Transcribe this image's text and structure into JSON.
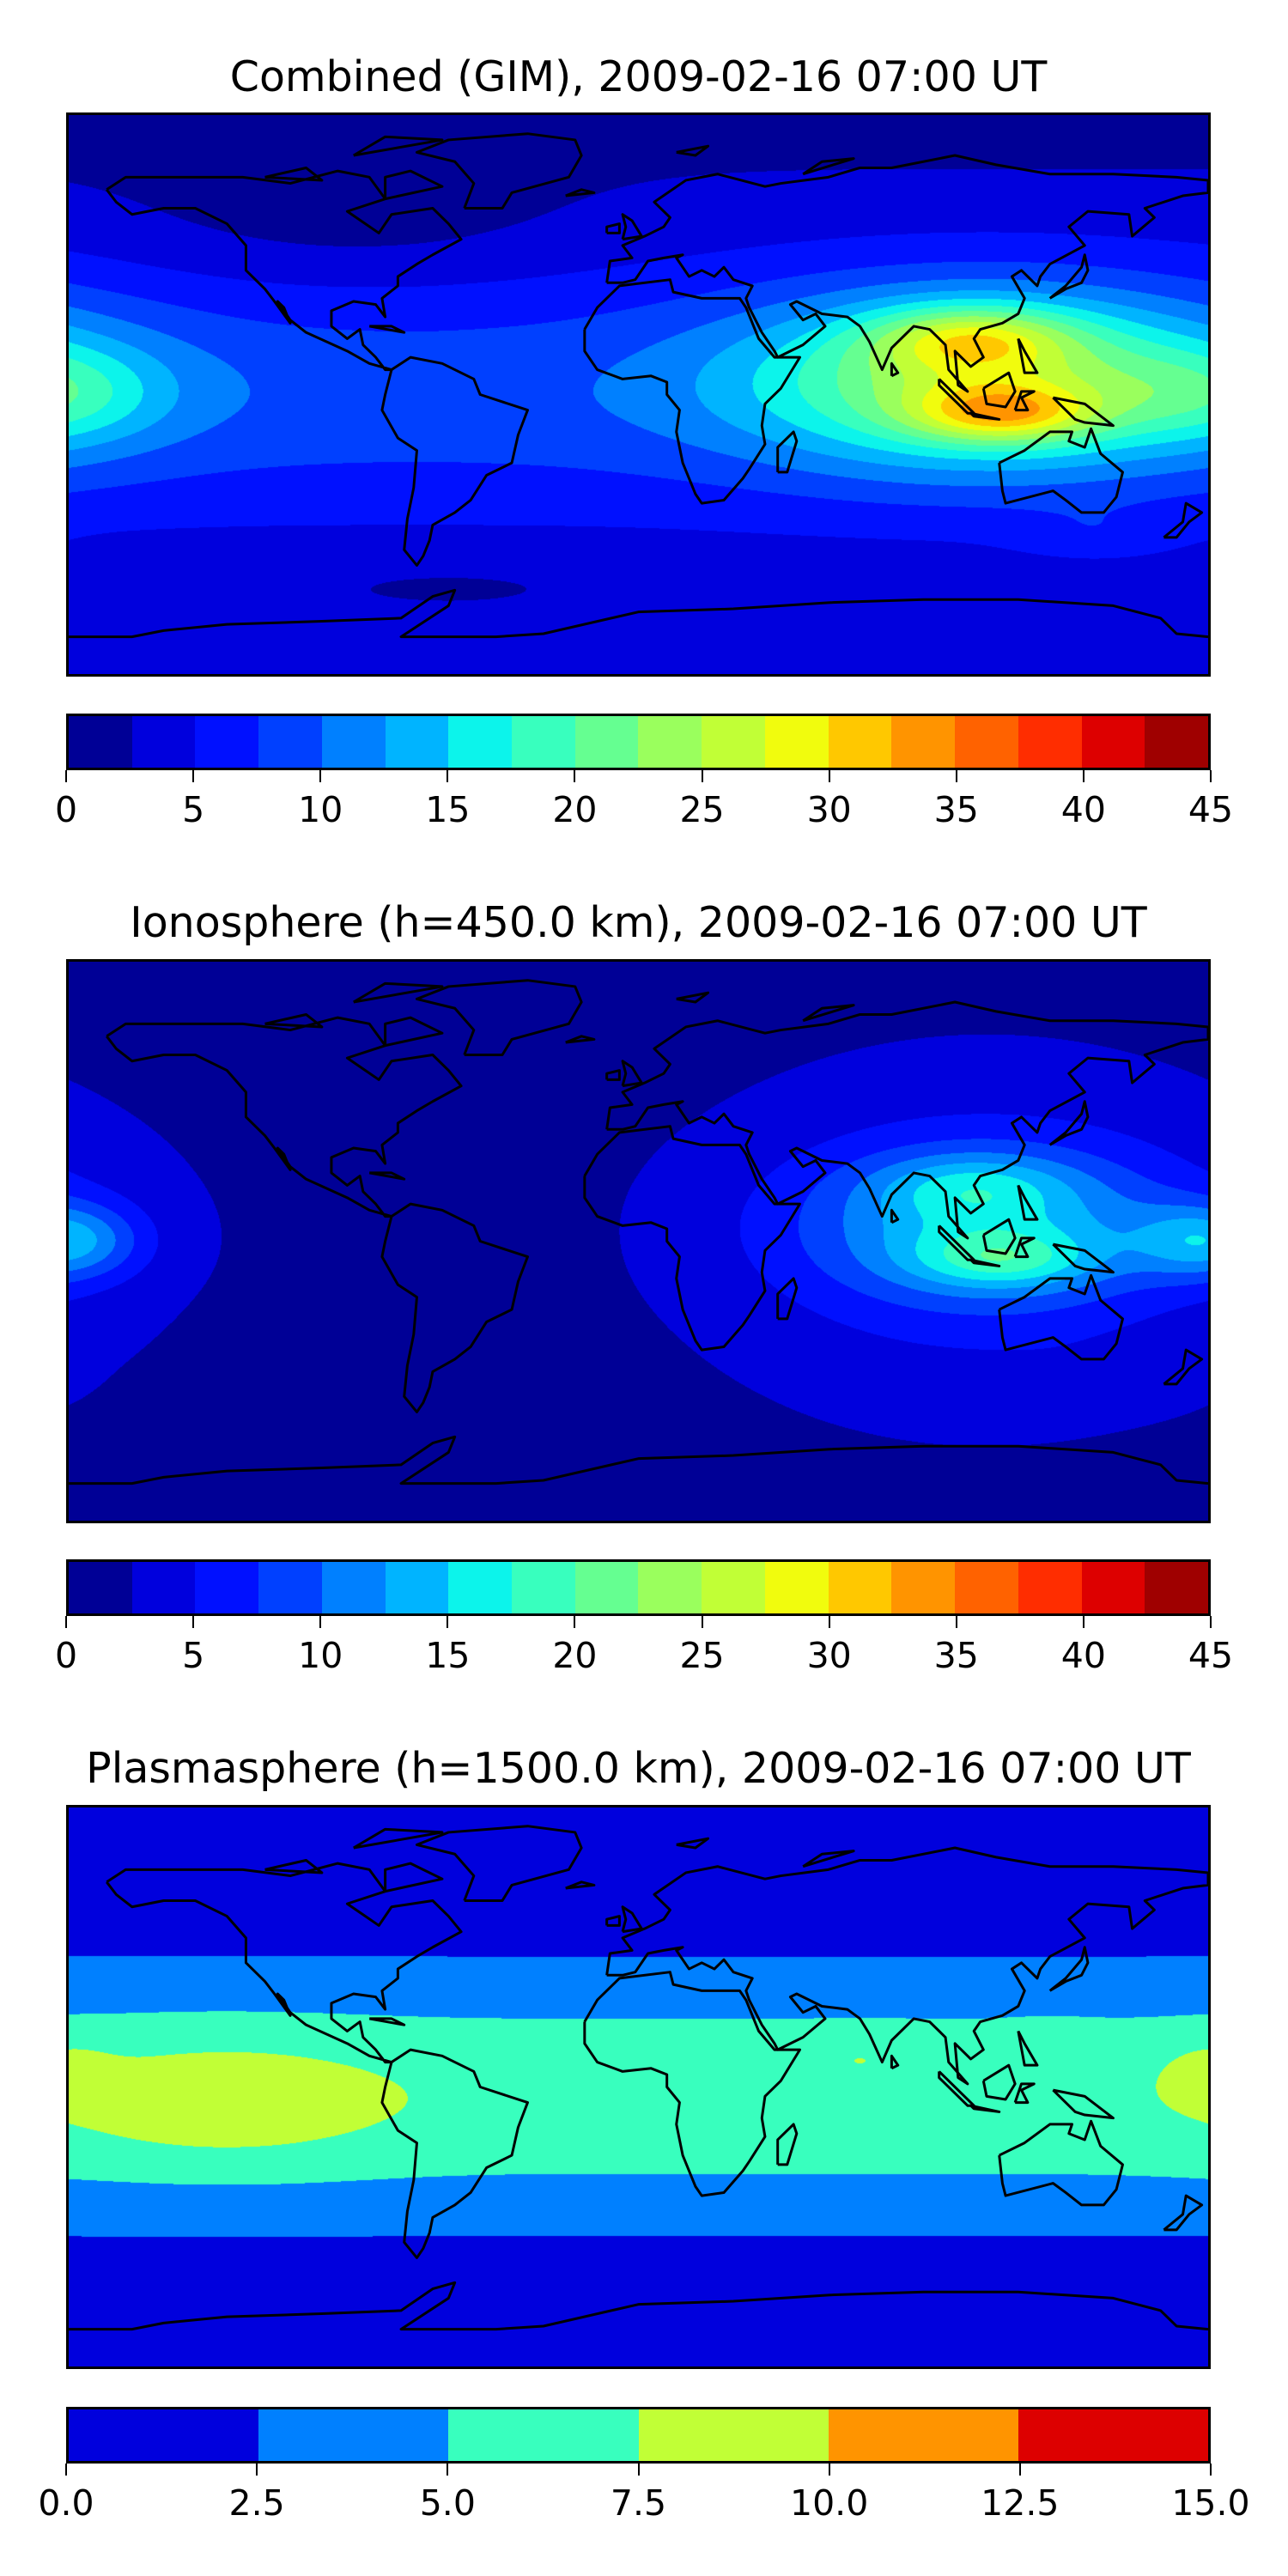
{
  "panels": [
    {
      "title": "Combined (GIM), 2009-02-16 07:00 UT",
      "field": "combined",
      "colorbar": {
        "min": 0,
        "max": 45,
        "step": 2.5,
        "colors": [
          "#000096",
          "#0000dd",
          "#0010ff",
          "#0040ff",
          "#0080ff",
          "#00b4ff",
          "#0cf4eb",
          "#38ffbe",
          "#65ff91",
          "#9aff5d",
          "#c1ff36",
          "#f1fc0d",
          "#ffc800",
          "#ff9400",
          "#ff6200",
          "#ff2d00",
          "#dd0000",
          "#9f0000"
        ],
        "ticks": [
          0,
          5,
          10,
          15,
          20,
          25,
          30,
          35,
          40,
          45
        ],
        "tick_labels": [
          "0",
          "5",
          "10",
          "15",
          "20",
          "25",
          "30",
          "35",
          "40",
          "45"
        ]
      }
    },
    {
      "title": "Ionosphere  (h=450.0 km), 2009-02-16 07:00 UT",
      "field": "ionosphere",
      "colorbar": {
        "min": 0,
        "max": 45,
        "step": 2.5,
        "colors": [
          "#000096",
          "#0000dd",
          "#0010ff",
          "#0040ff",
          "#0080ff",
          "#00b4ff",
          "#0cf4eb",
          "#38ffbe",
          "#65ff91",
          "#9aff5d",
          "#c1ff36",
          "#f1fc0d",
          "#ffc800",
          "#ff9400",
          "#ff6200",
          "#ff2d00",
          "#dd0000",
          "#9f0000"
        ],
        "ticks": [
          0,
          5,
          10,
          15,
          20,
          25,
          30,
          35,
          40,
          45
        ],
        "tick_labels": [
          "0",
          "5",
          "10",
          "15",
          "20",
          "25",
          "30",
          "35",
          "40",
          "45"
        ]
      }
    },
    {
      "title": "Plasmasphere (h=1500.0 km), 2009-02-16 07:00 UT",
      "field": "plasmasphere",
      "colorbar": {
        "min": 0,
        "max": 15,
        "step": 2.5,
        "colors": [
          "#0000dd",
          "#0080ff",
          "#38ffbe",
          "#c1ff36",
          "#ff9400",
          "#dd0000"
        ],
        "ticks": [
          0,
          2.5,
          5,
          7.5,
          10,
          12.5,
          15
        ],
        "tick_labels": [
          "0.0",
          "2.5",
          "5.0",
          "7.5",
          "10.0",
          "12.5",
          "15.0"
        ]
      }
    }
  ]
}
